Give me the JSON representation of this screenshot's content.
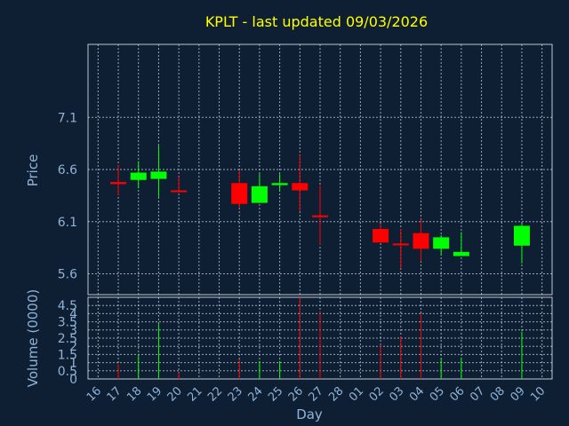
{
  "chart_data": {
    "type": "candlestick",
    "title": "KPLT - last updated 09/03/2026",
    "xlabel": "Day",
    "price_panel": {
      "ylabel": "Price",
      "yticks": [
        "7.1",
        "6.6",
        "6.1",
        "5.6"
      ],
      "ylim": [
        5.4,
        7.8
      ]
    },
    "volume_panel": {
      "ylabel": "Volume (0000)",
      "yticks": [
        "4.5",
        "4",
        "3.5",
        "3",
        "2.5",
        "2",
        "1.5",
        "1",
        "0.5",
        "0"
      ],
      "ylim": [
        0,
        5
      ]
    },
    "x_tick_labels": [
      "16",
      "17",
      "18",
      "19",
      "20",
      "21",
      "22",
      "23",
      "24",
      "25",
      "26",
      "27",
      "28",
      "01",
      "02",
      "03",
      "04",
      "05",
      "06",
      "07",
      "08",
      "09",
      "10"
    ],
    "candles": [
      {
        "day": "17",
        "open": 6.48,
        "high": 6.64,
        "low": 6.35,
        "close": 6.46,
        "volume": 0.9
      },
      {
        "day": "18",
        "open": 6.5,
        "high": 6.68,
        "low": 6.42,
        "close": 6.57,
        "volume": 1.5
      },
      {
        "day": "19",
        "open": 6.51,
        "high": 6.83,
        "low": 6.33,
        "close": 6.58,
        "volume": 3.4
      },
      {
        "day": "20",
        "open": 6.4,
        "high": 6.53,
        "low": 6.38,
        "close": 6.39,
        "volume": 0.4
      },
      {
        "day": "23",
        "open": 6.47,
        "high": 6.59,
        "low": 6.23,
        "close": 6.27,
        "volume": 1.2
      },
      {
        "day": "24",
        "open": 6.28,
        "high": 6.56,
        "low": 6.28,
        "close": 6.44,
        "volume": 1.1
      },
      {
        "day": "25",
        "open": 6.45,
        "high": 6.56,
        "low": 6.4,
        "close": 6.47,
        "volume": 1.1
      },
      {
        "day": "26",
        "open": 6.47,
        "high": 6.74,
        "low": 6.2,
        "close": 6.4,
        "volume": 5.0
      },
      {
        "day": "27",
        "open": 6.16,
        "high": 6.45,
        "low": 5.88,
        "close": 6.15,
        "volume": 4.1
      },
      {
        "day": "02",
        "open": 6.03,
        "high": 6.08,
        "low": 5.9,
        "close": 5.9,
        "volume": 2.1
      },
      {
        "day": "03",
        "open": 5.89,
        "high": 6.03,
        "low": 5.65,
        "close": 5.88,
        "volume": 2.6
      },
      {
        "day": "04",
        "open": 5.99,
        "high": 6.12,
        "low": 5.72,
        "close": 5.84,
        "volume": 4.0
      },
      {
        "day": "05",
        "open": 5.84,
        "high": 5.97,
        "low": 5.78,
        "close": 5.95,
        "volume": 1.3
      },
      {
        "day": "06",
        "open": 5.77,
        "high": 6.0,
        "low": 5.77,
        "close": 5.81,
        "volume": 1.3
      },
      {
        "day": "09",
        "open": 5.87,
        "high": 6.08,
        "low": 5.7,
        "close": 6.06,
        "volume": 2.9
      }
    ]
  }
}
